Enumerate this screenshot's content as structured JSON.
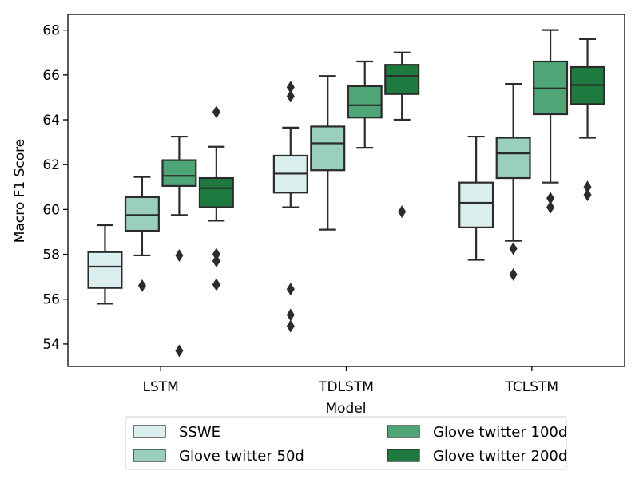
{
  "chart_data": {
    "type": "boxplot",
    "title": "",
    "xlabel": "Model",
    "ylabel": "Macro F1 Score",
    "ylim": [
      53.0,
      68.7
    ],
    "yticks": [
      54,
      56,
      58,
      60,
      62,
      64,
      66,
      68
    ],
    "ytick_labels": [
      "54",
      "56",
      "58",
      "60",
      "62",
      "64",
      "66",
      "68"
    ],
    "categories": [
      "LSTM",
      "TDLSTM",
      "TCLSTM"
    ],
    "legend_position": "bottom-center",
    "series": [
      {
        "name": "SSWE",
        "color": "#daeeee",
        "boxes": [
          {
            "whislo": 55.8,
            "q1": 56.5,
            "med": 57.45,
            "q3": 58.1,
            "whishi": 59.3,
            "fliers": []
          },
          {
            "whislo": 60.1,
            "q1": 60.75,
            "med": 61.6,
            "q3": 62.4,
            "whishi": 63.65,
            "fliers": [
              65.45,
              65.05,
              56.45,
              55.3,
              54.8
            ]
          },
          {
            "whislo": 57.75,
            "q1": 59.2,
            "med": 60.3,
            "q3": 61.2,
            "whishi": 63.25,
            "fliers": []
          }
        ]
      },
      {
        "name": "Glove twitter 50d",
        "color": "#99cfbb",
        "boxes": [
          {
            "whislo": 57.95,
            "q1": 59.05,
            "med": 59.75,
            "q3": 60.55,
            "whishi": 61.45,
            "fliers": [
              56.6
            ]
          },
          {
            "whislo": 59.1,
            "q1": 61.75,
            "med": 62.95,
            "q3": 63.7,
            "whishi": 65.95,
            "fliers": []
          },
          {
            "whislo": 58.6,
            "q1": 61.4,
            "med": 62.5,
            "q3": 63.2,
            "whishi": 65.6,
            "fliers": [
              58.25,
              57.1
            ]
          }
        ]
      },
      {
        "name": "Glove twitter 100d",
        "color": "#4ea676",
        "boxes": [
          {
            "whislo": 59.75,
            "q1": 61.05,
            "med": 61.5,
            "q3": 62.2,
            "whishi": 63.25,
            "fliers": [
              57.95,
              53.7
            ]
          },
          {
            "whislo": 62.75,
            "q1": 64.1,
            "med": 64.65,
            "q3": 65.5,
            "whishi": 66.6,
            "fliers": []
          },
          {
            "whislo": 61.2,
            "q1": 64.25,
            "med": 65.4,
            "q3": 66.6,
            "whishi": 68.0,
            "fliers": [
              60.5,
              60.1
            ]
          }
        ]
      },
      {
        "name": "Glove twitter 200d",
        "color": "#1e7a3e",
        "boxes": [
          {
            "whislo": 59.5,
            "q1": 60.1,
            "med": 60.95,
            "q3": 61.4,
            "whishi": 62.8,
            "fliers": [
              64.35,
              58.0,
              57.7,
              56.65
            ]
          },
          {
            "whislo": 64.0,
            "q1": 65.15,
            "med": 65.95,
            "q3": 66.45,
            "whishi": 67.0,
            "fliers": [
              59.9
            ]
          },
          {
            "whislo": 63.2,
            "q1": 64.7,
            "med": 65.55,
            "q3": 66.35,
            "whishi": 67.6,
            "fliers": [
              61.0,
              60.65
            ]
          }
        ]
      }
    ]
  }
}
